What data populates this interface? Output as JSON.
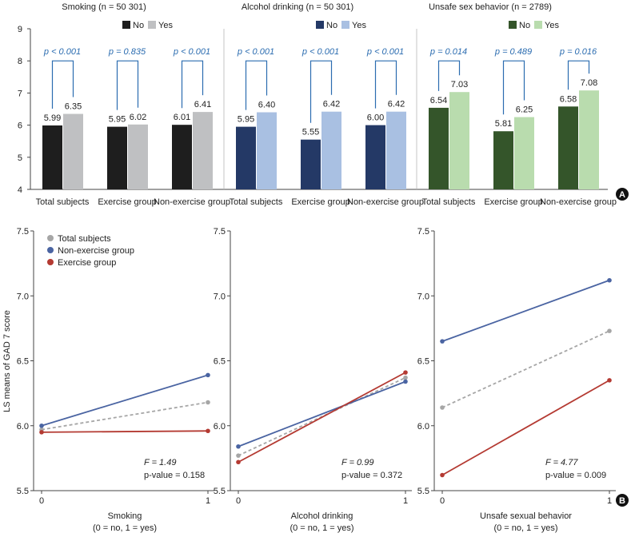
{
  "panel_a": {
    "label": "A",
    "y_ticks": [
      "4",
      "5",
      "6",
      "7",
      "8",
      "9"
    ],
    "legend_no": "No",
    "legend_yes": "Yes"
  },
  "panel_b": {
    "label": "B",
    "ylabel": "LS means of GAD 7 score",
    "legend": [
      "Total subjects",
      "Non-exercise group",
      "Exercise group"
    ],
    "y_ticks": [
      "5.5",
      "6.0",
      "6.5",
      "7.0",
      "7.5"
    ],
    "x_ticks": [
      "0",
      "1"
    ]
  },
  "colors": {
    "smoking_no": "#1e1e1e",
    "smoking_yes": "#bfc0c2",
    "alcohol_no": "#243966",
    "alcohol_yes": "#a9c0e2",
    "sex_no": "#34552a",
    "sex_yes": "#b9dcae",
    "bracket": "#2b6cb0",
    "total": "#a6a6a6",
    "nonex": "#4a64a2",
    "ex": "#b43a32"
  },
  "chart_data": [
    {
      "type": "bar",
      "ylim": [
        4,
        9
      ],
      "categories": [
        "Total subjects",
        "Exercise group",
        "Non-exercise group"
      ],
      "groups": [
        {
          "title": "Smoking (n = 50 301)",
          "series": [
            {
              "name": "No",
              "values": [
                5.99,
                5.95,
                6.01
              ],
              "labels": [
                "5.99",
                "5.95",
                "6.01"
              ]
            },
            {
              "name": "Yes",
              "values": [
                6.35,
                6.02,
                6.41
              ],
              "labels": [
                "6.35",
                "6.02",
                "6.41"
              ]
            }
          ],
          "p_labels": [
            "p < 0.001",
            "p = 0.835",
            "p < 0.001"
          ]
        },
        {
          "title": "Alcohol drinking (n = 50 301)",
          "series": [
            {
              "name": "No",
              "values": [
                5.95,
                5.55,
                6.0
              ],
              "labels": [
                "5.95",
                "5.55",
                "6.00"
              ]
            },
            {
              "name": "Yes",
              "values": [
                6.4,
                6.42,
                6.42
              ],
              "labels": [
                "6.40",
                "6.42",
                "6.42"
              ]
            }
          ],
          "p_labels": [
            "p < 0.001",
            "p < 0.001",
            "p < 0.001"
          ]
        },
        {
          "title": "Unsafe sex behavior (n = 2789)",
          "series": [
            {
              "name": "No",
              "values": [
                6.54,
                5.81,
                6.58
              ],
              "labels": [
                "6.54",
                "5.81",
                "6.58"
              ]
            },
            {
              "name": "Yes",
              "values": [
                7.03,
                6.25,
                7.08
              ],
              "labels": [
                "7.03",
                "6.25",
                "7.08"
              ]
            }
          ],
          "p_labels": [
            "p = 0.014",
            "p = 0.489",
            "p = 0.016"
          ]
        }
      ]
    },
    {
      "type": "line",
      "ylim": [
        5.5,
        7.5
      ],
      "x": [
        0,
        1
      ],
      "ylabel": "LS means of GAD 7 score",
      "panels": [
        {
          "xlabel": "Smoking",
          "xlabel2": "(0 = no, 1 = yes)",
          "series": [
            {
              "name": "Total subjects",
              "values": [
                5.97,
                6.18
              ]
            },
            {
              "name": "Non-exercise group",
              "values": [
                6.0,
                6.39
              ]
            },
            {
              "name": "Exercise group",
              "values": [
                5.95,
                5.96
              ]
            }
          ],
          "stat_f": "F = 1.49",
          "stat_p": "p-value = 0.158"
        },
        {
          "xlabel": "Alcohol drinking",
          "xlabel2": "(0 = no, 1 = yes)",
          "series": [
            {
              "name": "Total subjects",
              "values": [
                5.77,
                6.37
              ]
            },
            {
              "name": "Non-exercise group",
              "values": [
                5.84,
                6.34
              ]
            },
            {
              "name": "Exercise group",
              "values": [
                5.72,
                6.41
              ]
            }
          ],
          "stat_f": "F = 0.99",
          "stat_p": "p-value = 0.372"
        },
        {
          "xlabel": "Unsafe sexual behavior",
          "xlabel2": "(0 = no, 1 = yes)",
          "series": [
            {
              "name": "Total subjects",
              "values": [
                6.14,
                6.73
              ]
            },
            {
              "name": "Non-exercise group",
              "values": [
                6.65,
                7.12
              ]
            },
            {
              "name": "Exercise group",
              "values": [
                5.62,
                6.35
              ]
            }
          ],
          "stat_f": "F = 4.77",
          "stat_p": "p-value = 0.009"
        }
      ]
    }
  ]
}
